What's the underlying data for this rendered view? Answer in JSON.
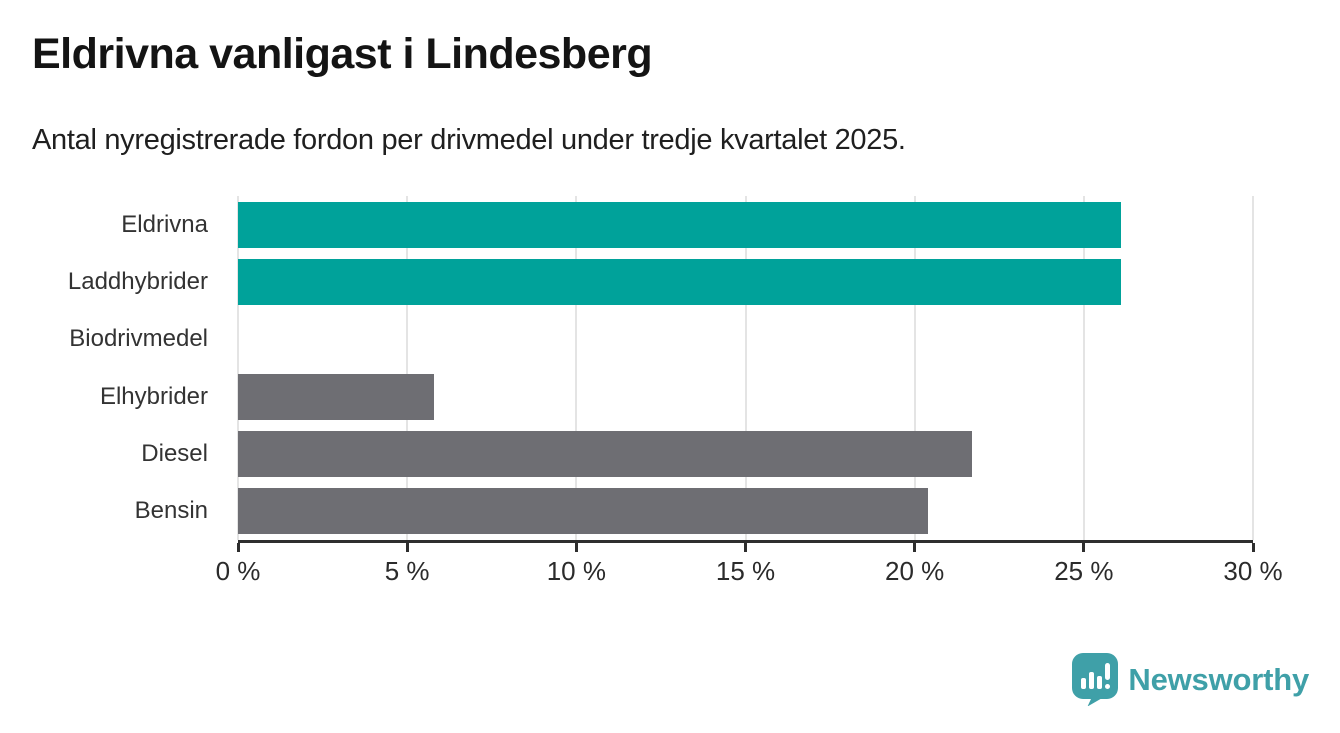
{
  "header": {
    "title": "Eldrivna vanligast i Lindesberg",
    "subtitle": "Antal nyregistrerade fordon per drivmedel under tredje kvartalet 2025."
  },
  "chart_data": {
    "type": "bar",
    "orientation": "horizontal",
    "title": "Eldrivna vanligast i Lindesberg",
    "subtitle": "Antal nyregistrerade fordon per drivmedel under tredje kvartalet 2025.",
    "categories": [
      "Eldrivna",
      "Laddhybrider",
      "Biodrivmedel",
      "Elhybrider",
      "Diesel",
      "Bensin"
    ],
    "values": [
      26.1,
      26.1,
      0,
      5.8,
      21.7,
      20.4
    ],
    "unit": "%",
    "highlight": [
      true,
      true,
      false,
      false,
      false,
      false
    ],
    "xlabel": "",
    "ylabel": "",
    "xlim": [
      0,
      30
    ],
    "x_ticks": [
      0,
      5,
      10,
      15,
      20,
      25,
      30
    ],
    "x_tick_labels": [
      "0 %",
      "5 %",
      "10 %",
      "15 %",
      "20 %",
      "25 %",
      "30 %"
    ],
    "grid": "vertical-only",
    "legend": "none",
    "colors": {
      "highlight": "#00a29a",
      "default": "#6e6e73",
      "gridline": "#e4e4e4",
      "axis": "#2e2e2e"
    }
  },
  "footer": {
    "brand": "Newsworthy",
    "brand_color": "#3fa0a8"
  }
}
